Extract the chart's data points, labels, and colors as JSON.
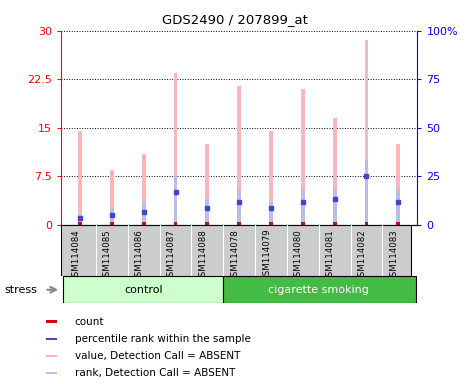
{
  "title": "GDS2490 / 207899_at",
  "samples": [
    "GSM114084",
    "GSM114085",
    "GSM114086",
    "GSM114087",
    "GSM114088",
    "GSM114078",
    "GSM114079",
    "GSM114080",
    "GSM114081",
    "GSM114082",
    "GSM114083"
  ],
  "value_absent": [
    14.5,
    8.5,
    11.0,
    23.5,
    12.5,
    21.5,
    14.5,
    21.0,
    16.5,
    28.5,
    12.5
  ],
  "rank_absent": [
    1.5,
    2.5,
    3.5,
    7.5,
    4.0,
    5.5,
    3.5,
    5.5,
    5.5,
    10.0,
    5.5
  ],
  "count_red": [
    0.35,
    0.35,
    0.35,
    0.35,
    0.35,
    0.35,
    0.35,
    0.35,
    0.35,
    0.35,
    0.35
  ],
  "rank_blue_dots": [
    1.0,
    1.5,
    2.0,
    5.0,
    2.5,
    3.5,
    2.5,
    3.5,
    4.0,
    7.5,
    3.5
  ],
  "ylim_left": [
    0,
    30
  ],
  "ylim_right": [
    0,
    100
  ],
  "yticks_left": [
    0,
    7.5,
    15,
    22.5,
    30
  ],
  "ytick_labels_left": [
    "0",
    "7.5",
    "15",
    "22.5",
    "30"
  ],
  "yticks_right": [
    0,
    25,
    50,
    75,
    100
  ],
  "ytick_labels_right": [
    "0",
    "25",
    "50",
    "75",
    "100%"
  ],
  "color_value_absent": "#FFB6B6",
  "color_rank_absent": "#BBBBEE",
  "color_count": "#DD0000",
  "color_rank_blue": "#4444CC",
  "bar_width": 0.12,
  "control_color": "#CCFFCC",
  "smoking_color": "#44BB44",
  "label_area_color": "#CCCCCC"
}
